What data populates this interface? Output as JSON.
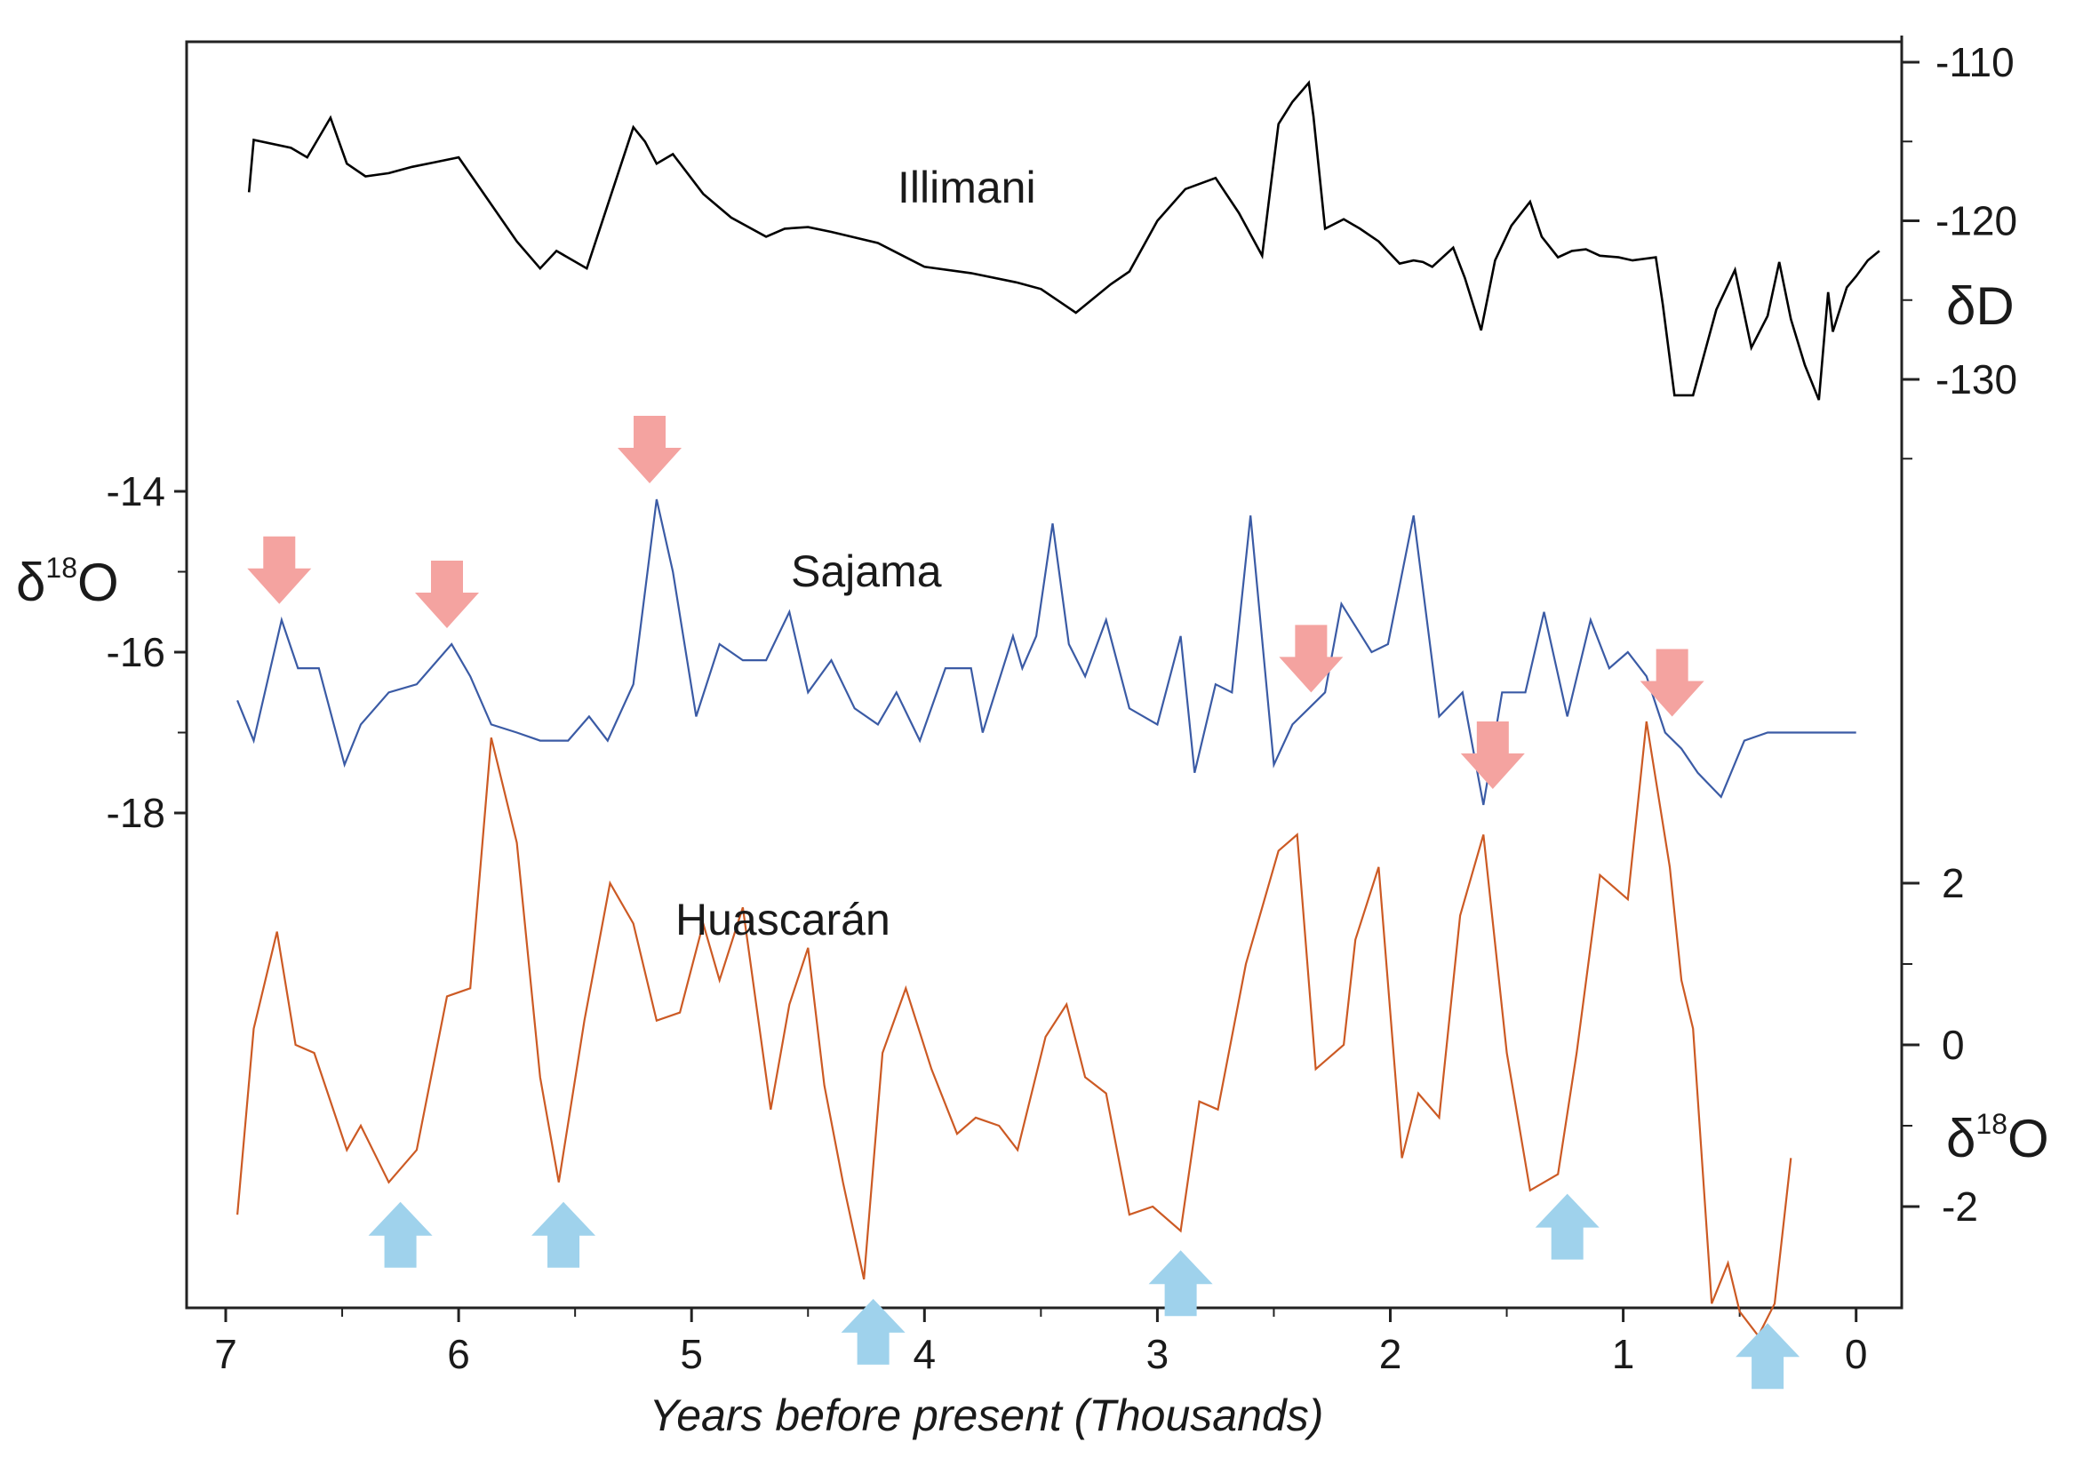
{
  "chart_data": {
    "type": "line",
    "xlabel": "Years before present (Thousands)",
    "xlim": [
      7,
      0
    ],
    "x_ticks": [
      "7",
      "6",
      "5",
      "4",
      "3",
      "2",
      "1",
      "0"
    ],
    "axes": {
      "dD": {
        "title": "δD",
        "side": "right",
        "ticks": [
          "-110",
          "-120",
          "-130"
        ]
      },
      "sajama_d18O": {
        "title_main": "δ",
        "title_sup": "18",
        "title_end": "O",
        "side": "left",
        "ticks": [
          "-14",
          "-16",
          "-18"
        ]
      },
      "huascaran_d18O": {
        "title_main": "δ",
        "title_sup": "18",
        "title_end": "O",
        "side": "right",
        "ticks": [
          "2",
          "0",
          "-2"
        ]
      }
    },
    "series": [
      {
        "name": "Illimani",
        "color": "#000000",
        "axis": "dD",
        "x": [
          6.9,
          6.88,
          6.72,
          6.65,
          6.55,
          6.48,
          6.4,
          6.3,
          6.2,
          6.1,
          6.0,
          5.75,
          5.65,
          5.58,
          5.45,
          5.25,
          5.2,
          5.15,
          5.08,
          4.95,
          4.83,
          4.68,
          4.6,
          4.5,
          4.4,
          4.2,
          4.0,
          3.8,
          3.6,
          3.5,
          3.4,
          3.35,
          3.2,
          3.12,
          3.0,
          2.88,
          2.75,
          2.65,
          2.55,
          2.52,
          2.48,
          2.42,
          2.35,
          2.33,
          2.28,
          2.2,
          2.13,
          2.05,
          1.96,
          1.9,
          1.86,
          1.82,
          1.73,
          1.68,
          1.61,
          1.55,
          1.48,
          1.4,
          1.35,
          1.28,
          1.22,
          1.16,
          1.1,
          1.02,
          0.96,
          0.86,
          0.83,
          0.78,
          0.7,
          0.6,
          0.52,
          0.45,
          0.38,
          0.33,
          0.28,
          0.22,
          0.16,
          0.12,
          0.1,
          0.04,
          0.0,
          -0.05,
          -0.1
        ],
        "values": [
          -118.2,
          -114.9,
          -115.4,
          -116.0,
          -113.5,
          -116.4,
          -117.2,
          -117.0,
          -116.6,
          -116.3,
          -116.0,
          -121.3,
          -123.0,
          -121.9,
          -123.0,
          -114.1,
          -115.0,
          -116.4,
          -115.8,
          -118.3,
          -119.8,
          -121.0,
          -120.5,
          -120.4,
          -120.7,
          -121.4,
          -122.9,
          -123.3,
          -123.9,
          -124.3,
          -125.3,
          -125.8,
          -124.0,
          -123.2,
          -120.0,
          -118.0,
          -117.3,
          -119.5,
          -122.2,
          -118.6,
          -113.9,
          -112.5,
          -111.3,
          -113.4,
          -120.5,
          -119.9,
          -120.5,
          -121.3,
          -122.7,
          -122.5,
          -122.6,
          -122.9,
          -121.7,
          -123.6,
          -126.9,
          -122.5,
          -120.3,
          -118.8,
          -121.0,
          -122.3,
          -121.9,
          -121.8,
          -122.2,
          -122.3,
          -122.5,
          -122.3,
          -125.3,
          -131.0,
          -131.0,
          -125.6,
          -123.1,
          -128.0,
          -126.0,
          -122.6,
          -126.2,
          -129.1,
          -131.3,
          -124.5,
          -127.0,
          -124.2,
          -123.5,
          -122.5,
          -121.9
        ]
      },
      {
        "name": "Sajama",
        "color": "#3b5ba5",
        "axis": "sajama_d18O",
        "x": [
          6.95,
          6.88,
          6.76,
          6.69,
          6.6,
          6.49,
          6.42,
          6.3,
          6.18,
          6.03,
          5.95,
          5.86,
          5.75,
          5.65,
          5.53,
          5.44,
          5.36,
          5.25,
          5.15,
          5.08,
          4.98,
          4.88,
          4.78,
          4.68,
          4.58,
          4.5,
          4.4,
          4.3,
          4.2,
          4.12,
          4.02,
          3.91,
          3.8,
          3.75,
          3.62,
          3.58,
          3.52,
          3.45,
          3.38,
          3.31,
          3.22,
          3.12,
          3.0,
          2.9,
          2.84,
          2.75,
          2.68,
          2.6,
          2.5,
          2.42,
          2.35,
          2.28,
          2.21,
          2.08,
          2.01,
          1.9,
          1.79,
          1.69,
          1.6,
          1.52,
          1.42,
          1.34,
          1.24,
          1.14,
          1.06,
          0.98,
          0.9,
          0.82,
          0.75,
          0.68,
          0.58,
          0.48,
          0.38,
          0.3,
          0.2,
          0.12,
          0.08,
          0.0
        ],
        "values": [
          -16.6,
          -17.1,
          -15.6,
          -16.2,
          -16.2,
          -17.4,
          -16.9,
          -16.5,
          -16.4,
          -15.9,
          -16.3,
          -16.9,
          -17.0,
          -17.1,
          -17.1,
          -16.8,
          -17.1,
          -16.4,
          -14.1,
          -15.0,
          -16.8,
          -15.9,
          -16.1,
          -16.1,
          -15.5,
          -16.5,
          -16.1,
          -16.7,
          -16.9,
          -16.5,
          -17.1,
          -16.2,
          -16.2,
          -17.0,
          -15.8,
          -16.2,
          -15.8,
          -14.4,
          -15.9,
          -16.3,
          -15.6,
          -16.7,
          -16.9,
          -15.8,
          -17.5,
          -16.4,
          -16.5,
          -14.3,
          -17.4,
          -16.9,
          -16.7,
          -16.5,
          -15.4,
          -16.0,
          -15.9,
          -14.3,
          -16.8,
          -16.5,
          -17.9,
          -16.5,
          -16.5,
          -15.5,
          -16.8,
          -15.6,
          -16.2,
          -16.0,
          -16.3,
          -17.0,
          -17.2,
          -17.5,
          -17.8,
          -17.1,
          -17.0,
          -17.0,
          -17.0,
          -17.0,
          -17.0,
          -17.0
        ],
        "arrows_at_x": [
          6.77,
          6.05,
          5.18,
          2.34,
          1.56,
          0.79
        ]
      },
      {
        "name": "Huascarán",
        "color": "#cc5a24",
        "axis": "huascaran_d18O",
        "x": [
          6.95,
          6.88,
          6.78,
          6.7,
          6.62,
          6.48,
          6.42,
          6.3,
          6.18,
          6.05,
          5.95,
          5.86,
          5.75,
          5.65,
          5.57,
          5.46,
          5.35,
          5.25,
          5.15,
          5.05,
          4.95,
          4.88,
          4.78,
          4.66,
          4.58,
          4.5,
          4.43,
          4.35,
          4.26,
          4.18,
          4.08,
          3.97,
          3.86,
          3.78,
          3.68,
          3.6,
          3.48,
          3.39,
          3.31,
          3.22,
          3.12,
          3.02,
          2.9,
          2.82,
          2.74,
          2.62,
          2.48,
          2.4,
          2.32,
          2.2,
          2.15,
          2.05,
          1.95,
          1.88,
          1.79,
          1.7,
          1.6,
          1.5,
          1.4,
          1.28,
          1.2,
          1.1,
          0.98,
          0.9,
          0.8,
          0.75,
          0.7,
          0.62,
          0.55,
          0.5,
          0.42,
          0.35,
          0.28
        ],
        "values": [
          -2.1,
          0.2,
          1.4,
          0.0,
          -0.1,
          -1.3,
          -1.0,
          -1.7,
          -1.3,
          0.6,
          0.7,
          3.8,
          2.5,
          -0.4,
          -1.7,
          0.3,
          2.0,
          1.5,
          0.3,
          0.4,
          1.5,
          0.8,
          1.7,
          -0.8,
          0.5,
          1.2,
          -0.5,
          -1.7,
          -2.9,
          -0.1,
          0.7,
          -0.3,
          -1.1,
          -0.9,
          -1.0,
          -1.3,
          0.1,
          0.5,
          -0.4,
          -0.6,
          -2.1,
          -2.0,
          -2.3,
          -0.7,
          -0.8,
          1.0,
          2.4,
          2.6,
          -0.3,
          0.0,
          1.3,
          2.2,
          -1.4,
          -0.6,
          -0.9,
          1.6,
          2.6,
          -0.1,
          -1.8,
          -1.6,
          -0.1,
          2.1,
          1.8,
          4.0,
          2.2,
          0.8,
          0.2,
          -3.2,
          -2.7,
          -3.3,
          -3.6,
          -3.2,
          -1.4
        ],
        "arrows_at_x": [
          6.25,
          5.55,
          4.22,
          2.9,
          1.24,
          0.38
        ]
      }
    ]
  }
}
